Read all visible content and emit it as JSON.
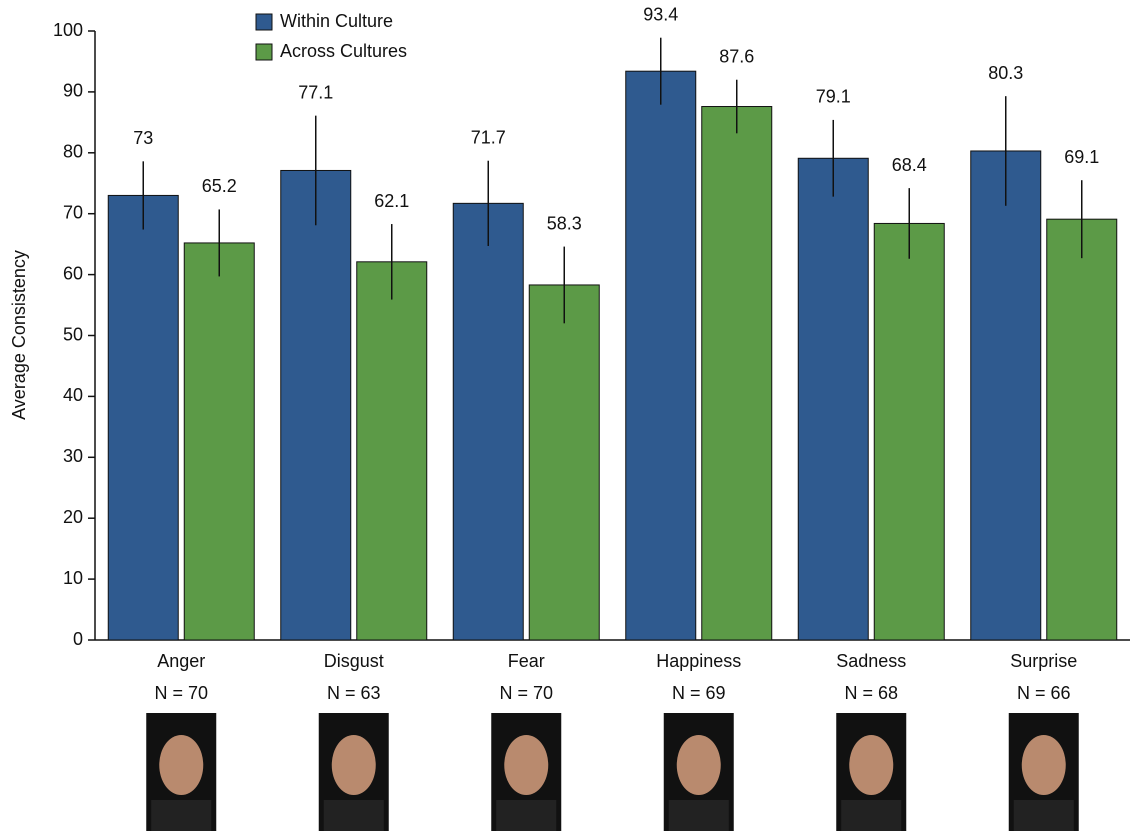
{
  "chart_data": {
    "type": "bar",
    "y_label": "Average Consistency",
    "categories": [
      "Anger",
      "Disgust",
      "Fear",
      "Happiness",
      "Sadness",
      "Surprise"
    ],
    "n_labels": [
      "N = 70",
      "N = 63",
      "N = 70",
      "N = 69",
      "N = 68",
      "N = 66"
    ],
    "series": [
      {
        "name": "Within Culture",
        "color": "#2f5a8f",
        "values": [
          73,
          77.1,
          71.7,
          93.4,
          79.1,
          80.3
        ],
        "errors": [
          5.6,
          9,
          7,
          5.5,
          6.3,
          9
        ]
      },
      {
        "name": "Across Cultures",
        "color": "#5c9a47",
        "values": [
          65.2,
          62.1,
          58.3,
          87.6,
          68.4,
          69.1
        ],
        "errors": [
          5.5,
          6.2,
          6.3,
          4.4,
          5.8,
          6.4
        ]
      }
    ],
    "ylim": [
      0,
      100
    ],
    "yticks": [
      0,
      10,
      20,
      30,
      40,
      50,
      60,
      70,
      80,
      90,
      100
    ],
    "legend": "top-left"
  }
}
